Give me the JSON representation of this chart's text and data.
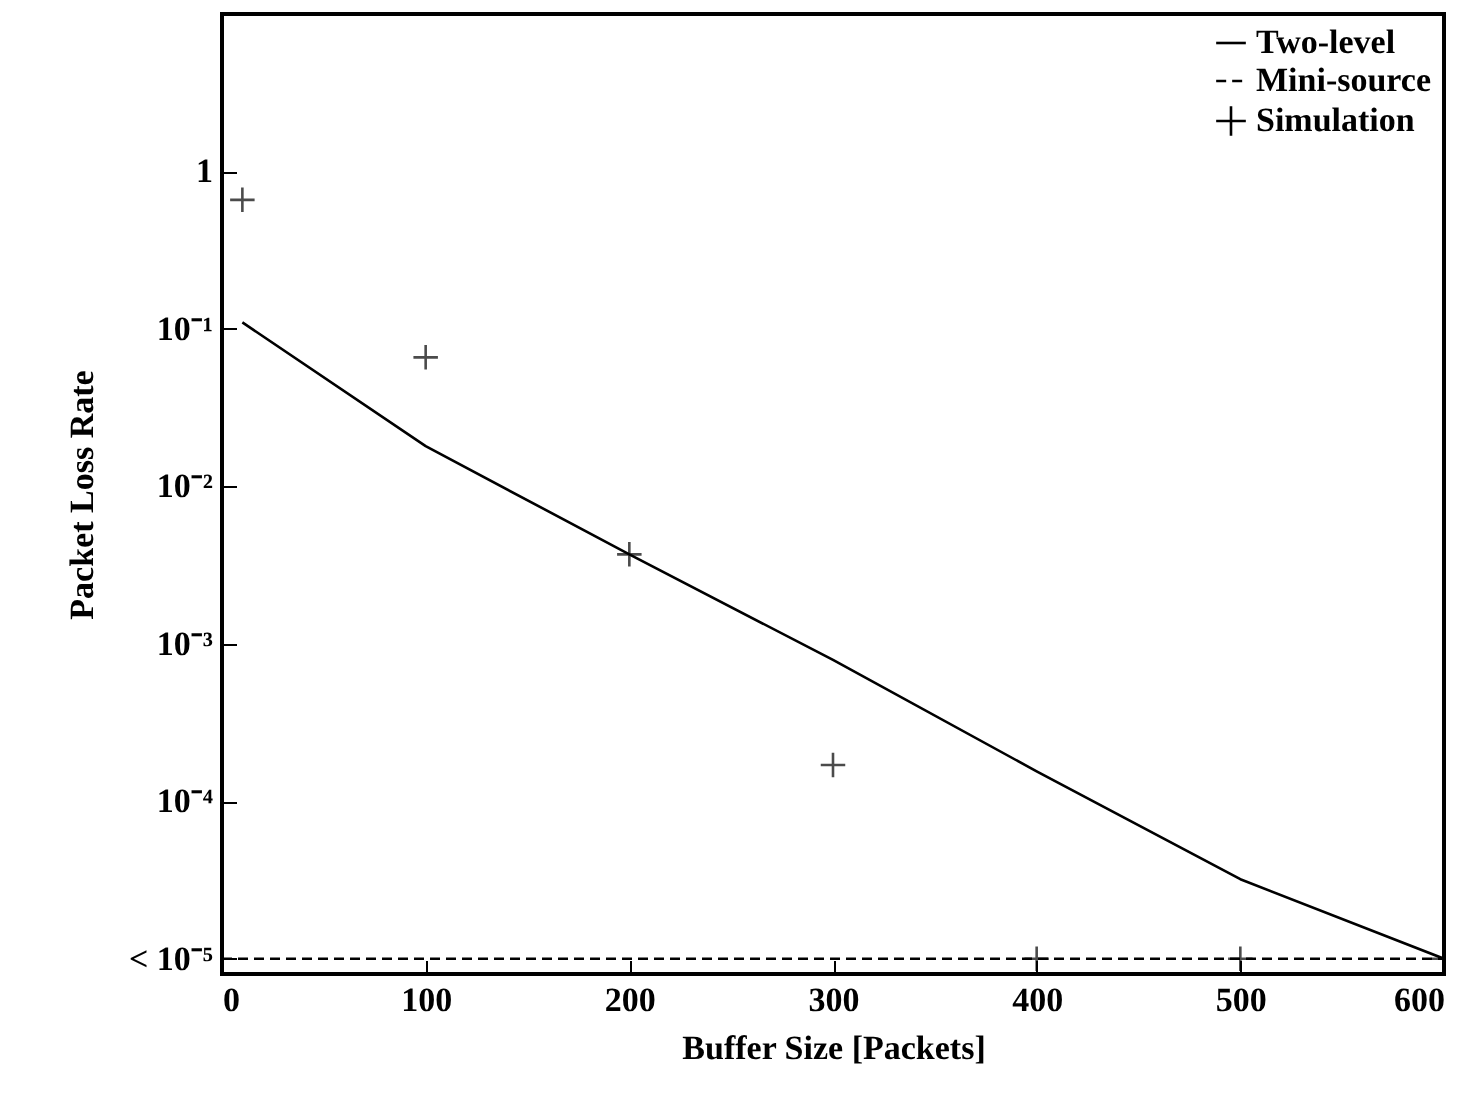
{
  "chart_data": {
    "type": "line",
    "xlabel": "Buffer Size [Packets]",
    "ylabel": "Packet Loss Rate",
    "series": [
      {
        "name": "Two-level",
        "type": "line",
        "color": "#000000",
        "line_style": "solid",
        "x": [
          10,
          100,
          200,
          300,
          400,
          500,
          600
        ],
        "values": [
          0.11,
          0.018,
          0.0037,
          0.00079,
          0.000155,
          3.2e-05,
          1e-05
        ]
      },
      {
        "name": "Mini-source",
        "type": "line",
        "color": "#000000",
        "line_style": "dashed",
        "x": [
          0,
          600
        ],
        "values": [
          1e-05,
          1e-05
        ]
      },
      {
        "name": "Simulation",
        "type": "scatter",
        "color": "#000000",
        "marker": "cross",
        "x": [
          10,
          100,
          200,
          300,
          400,
          500,
          600
        ],
        "values": [
          0.66,
          0.066,
          0.0037,
          0.00017,
          1e-05,
          1e-05,
          1e-05
        ]
      }
    ],
    "log": "y",
    "xlim": [
      0,
      600
    ],
    "ylim": [
      8e-06,
      10
    ],
    "xticks": [
      0,
      100,
      200,
      300,
      400,
      500,
      600
    ],
    "yticks": [
      {
        "value": 1e-05,
        "label": "< 10⁻⁵"
      },
      {
        "value": 0.0001,
        "label": "10⁻⁴"
      },
      {
        "value": 0.001,
        "label": "10⁻³"
      },
      {
        "value": 0.01,
        "label": "10⁻²"
      },
      {
        "value": 0.1,
        "label": "10⁻¹"
      },
      1
    ],
    "grid": false,
    "legend": "top right"
  }
}
